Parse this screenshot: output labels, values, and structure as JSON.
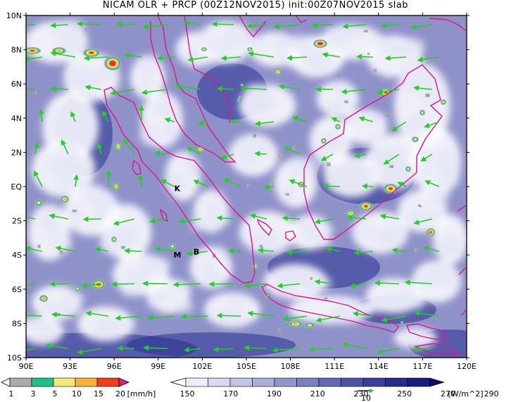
{
  "title": "NICAM OLR + PRCP (00Z12NOV2015) init:00Z07NOV2015 slab",
  "map": {
    "lat_labels": [
      "10N",
      "8N",
      "6N",
      "4N",
      "2N",
      "EQ",
      "2S",
      "4S",
      "6S",
      "8S",
      "10S"
    ],
    "lon_labels": [
      "90E",
      "93E",
      "96E",
      "99E",
      "102E",
      "105E",
      "108E",
      "111E",
      "114E",
      "117E",
      "120E"
    ],
    "markers": [
      {
        "label": "K",
        "lon": 100.3,
        "lat": -0.1
      },
      {
        "label": "M",
        "lon": 100.3,
        "lat": -4.0
      },
      {
        "label": "B",
        "lon": 101.6,
        "lat": -3.8
      }
    ]
  },
  "precip_colorbar": {
    "ticks": [
      "1",
      "3",
      "5",
      "10",
      "15",
      "20"
    ],
    "unit": "[mm/h]",
    "colors": [
      "#ffffff",
      "#aaaaaa",
      "#19c28a",
      "#f4e87a",
      "#f7b234",
      "#f23b17",
      "#e21b7f"
    ]
  },
  "olr_colorbar": {
    "ticks": [
      "150",
      "170",
      "190",
      "210",
      "230",
      "250",
      "270",
      "290"
    ],
    "unit": "[W/m^2]",
    "vector_label": "10",
    "colors": [
      "#ffffff",
      "#ecedf8",
      "#d9daf0",
      "#c2c4e6",
      "#aaaddb",
      "#9195cf",
      "#7a7fc3",
      "#6469b6",
      "#4e53a8",
      "#3a3f9b",
      "#272c8f",
      "#161c84",
      "#0a0f6e"
    ]
  },
  "styles": {
    "coast": "#e0138a",
    "arrow": "#22d022",
    "ocean": "#8f92c9",
    "frame": "#000000"
  }
}
